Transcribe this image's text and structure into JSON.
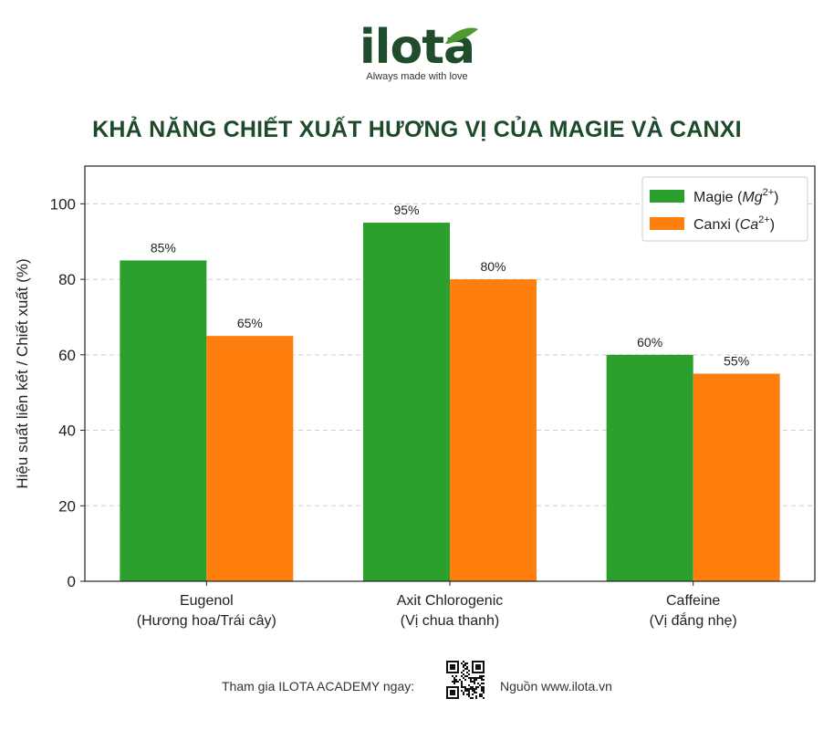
{
  "brand": {
    "name": "ilota",
    "tagline": "Always made with love",
    "logo_color": "#1f4d2b",
    "leaf_color": "#4a9a2c"
  },
  "title": "KHẢ NĂNG CHIẾT XUẤT HƯƠNG VỊ CỦA MAGIE VÀ CANXI",
  "chart_data": {
    "type": "bar",
    "categories": [
      [
        "Eugenol",
        "(Hương hoa/Trái cây)"
      ],
      [
        "Axit Chlorogenic",
        "(Vị chua thanh)"
      ],
      [
        "Caffeine",
        "(Vị đắng nhẹ)"
      ]
    ],
    "series": [
      {
        "name": "Magie",
        "ion": "Mg",
        "charge": "2+",
        "color": "#2ca02c",
        "values": [
          85,
          95,
          60
        ],
        "labels": [
          "85%",
          "95%",
          "60%"
        ]
      },
      {
        "name": "Canxi",
        "ion": "Ca",
        "charge": "2+",
        "color": "#ff7f0e",
        "values": [
          65,
          80,
          55
        ],
        "labels": [
          "65%",
          "80%",
          "55%"
        ]
      }
    ],
    "ylabel": "Hiệu suất liên kết / Chiết xuất (%)",
    "xlabel": "",
    "ylim": [
      0,
      110
    ],
    "yticks": [
      0,
      20,
      40,
      60,
      80,
      100
    ],
    "grid": "horizontal dashed",
    "legend": "top-right"
  },
  "footer": {
    "join_text": "Tham gia ILOTA ACADEMY ngay:",
    "source_text": "Nguồn www.ilota.vn"
  }
}
